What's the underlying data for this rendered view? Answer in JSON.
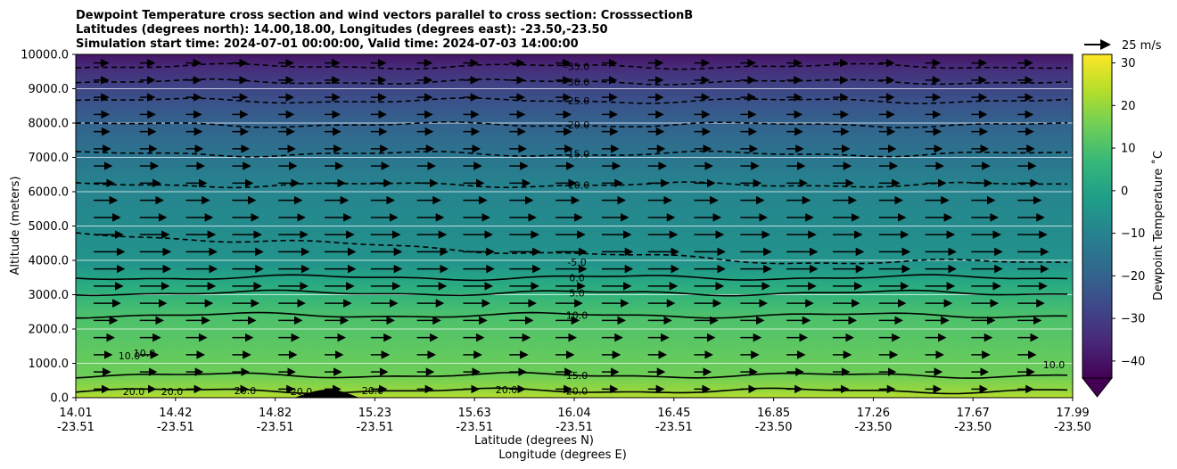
{
  "chart_data": {
    "type": "heatmap",
    "title_lines": [
      "Dewpoint Temperature cross section and wind vectors parallel to cross section: CrosssectionB",
      "Latitudes (degrees north): 14.00,18.00, Longitudes (degrees east): -23.50,-23.50",
      "Simulation start time: 2024-07-01 00:00:00, Valid time: 2024-07-03 14:00:00"
    ],
    "ylabel": "Altitude (meters)",
    "xlabel_lat": "Latitude (degrees N)",
    "xlabel_lon": "Longitude (degrees E)",
    "ylim": [
      0,
      10000
    ],
    "yticks": [
      "0.0",
      "1000.0",
      "2000.0",
      "3000.0",
      "4000.0",
      "5000.0",
      "6000.0",
      "7000.0",
      "8000.0",
      "9000.0",
      "10000.0"
    ],
    "ytick_values": [
      0,
      1000,
      2000,
      3000,
      4000,
      5000,
      6000,
      7000,
      8000,
      9000,
      10000
    ],
    "xticks_lat": [
      "14.01",
      "14.42",
      "14.82",
      "15.23",
      "15.63",
      "16.04",
      "16.45",
      "16.85",
      "17.26",
      "17.67",
      "17.99"
    ],
    "xticks_lon": [
      "-23.51",
      "-23.51",
      "-23.51",
      "-23.51",
      "-23.51",
      "-23.51",
      "-23.51",
      "-23.50",
      "-23.50",
      "-23.50",
      "-23.50"
    ],
    "colorbar": {
      "label": "Dewpoint Temperature ˚C",
      "min": -44,
      "max": 32,
      "ticks": [
        "30",
        "20",
        "10",
        "0",
        "−10",
        "−20",
        "−30",
        "−40"
      ],
      "tick_values": [
        30,
        20,
        10,
        0,
        -10,
        -20,
        -30,
        -40
      ],
      "colormap": [
        "#440154",
        "#482878",
        "#3e4989",
        "#31688e",
        "#26828e",
        "#1f9e89",
        "#35b779",
        "#6ece58",
        "#b5de2b",
        "#fde725"
      ]
    },
    "wind_key": "25 m/s",
    "contour_levels": [
      {
        "level": -35,
        "label": "-35.0",
        "altitude": 9650
      },
      {
        "level": -30,
        "label": "-30.0",
        "altitude": 9200
      },
      {
        "level": -25,
        "label": "-25.0",
        "altitude": 8650
      },
      {
        "level": -20,
        "label": "-20.0",
        "altitude": 7950
      },
      {
        "level": -15,
        "label": "-15.0",
        "altitude": 7100
      },
      {
        "level": -10,
        "label": "-10.0",
        "altitude": 6200
      },
      {
        "level": -5,
        "label": "-5.0",
        "altitude": 3950
      },
      {
        "level": 0,
        "label": "0.0",
        "altitude": 3500
      },
      {
        "level": 5,
        "label": "5.0",
        "altitude": 3050
      },
      {
        "level": 10,
        "label": "10.0",
        "altitude": 2400
      },
      {
        "level": 15,
        "label": "15.0",
        "altitude": 650
      },
      {
        "level": 20,
        "label": "20.0",
        "altitude": 200
      }
    ],
    "extra_contour_labels": [
      "20.0",
      "20.0",
      "20.0",
      "20.0",
      "20.0",
      "20.0",
      "10.0",
      "10.0",
      "10.0"
    ],
    "terrain_max_altitude": 200
  }
}
